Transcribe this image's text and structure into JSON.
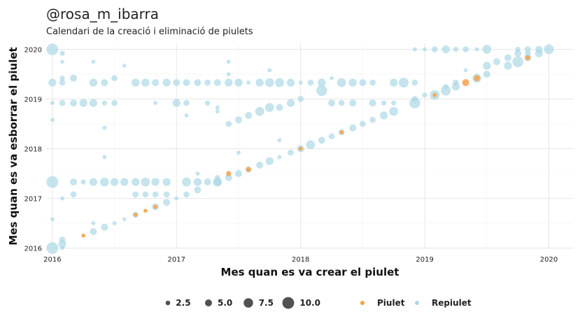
{
  "header": {
    "title": "@rosa_m_ibarra",
    "subtitle": "Calendari de la creació i eliminació de piulets"
  },
  "colors": {
    "piulet": "#F5A14A",
    "repiulet": "#ADD8E6",
    "grid": "#E6E6E6",
    "size_legend": "#333333"
  },
  "chart_data": {
    "type": "scatter",
    "xlabel": "Mes quan es va crear el piulet",
    "ylabel": "Mes quan es va esborrar el piulet",
    "xlim": [
      2015.95,
      2020.2
    ],
    "ylim": [
      2015.98,
      2020.12
    ],
    "x_ticks": [
      2016,
      2017,
      2018,
      2019,
      2020
    ],
    "y_ticks": [
      2016,
      2017,
      2018,
      2019,
      2020
    ],
    "x_tick_labels": [
      "2016",
      "2017",
      "2018",
      "2019",
      "2020"
    ],
    "y_tick_labels": [
      "2016",
      "2017",
      "2018",
      "2019",
      "2020"
    ],
    "grid": true,
    "legend_position": "bottom",
    "size_legend": {
      "values": [
        2.5,
        5.0,
        7.5,
        10.0
      ],
      "labels": [
        "2.5",
        "5.0",
        "7.5",
        "10.0"
      ]
    },
    "color_legend": [
      {
        "name": "Piulet",
        "color": "#F5A14A"
      },
      {
        "name": "Repiulet",
        "color": "#ADD8E6"
      }
    ],
    "series": [
      {
        "name": "Repiulet",
        "points": [
          [
            2016.0,
            2020.0,
            10
          ],
          [
            2016.08,
            2019.42,
            3
          ],
          [
            2016.08,
            2019.92,
            3
          ],
          [
            2016.0,
            2016.0,
            10
          ],
          [
            2016.08,
            2016.08,
            6
          ],
          [
            2016.08,
            2016.17,
            4
          ],
          [
            2016.33,
            2016.33,
            5
          ],
          [
            2016.42,
            2016.42,
            5
          ],
          [
            2016.5,
            2016.5,
            2
          ],
          [
            2016.58,
            2016.58,
            2
          ],
          [
            2016.67,
            2016.67,
            4
          ],
          [
            2016.83,
            2016.83,
            5
          ],
          [
            2016.92,
            2016.92,
            5
          ],
          [
            2017.0,
            2017.0,
            2
          ],
          [
            2017.08,
            2017.08,
            4
          ],
          [
            2017.17,
            2017.17,
            5
          ],
          [
            2017.33,
            2017.33,
            7
          ],
          [
            2017.42,
            2017.42,
            5
          ],
          [
            2017.5,
            2017.5,
            5
          ],
          [
            2017.58,
            2017.58,
            4
          ],
          [
            2017.67,
            2017.67,
            5
          ],
          [
            2017.75,
            2017.75,
            6
          ],
          [
            2017.83,
            2017.83,
            2
          ],
          [
            2017.92,
            2017.92,
            4
          ],
          [
            2018.0,
            2018.0,
            5
          ],
          [
            2018.08,
            2018.08,
            7
          ],
          [
            2018.17,
            2018.17,
            5
          ],
          [
            2018.25,
            2018.25,
            4
          ],
          [
            2018.33,
            2018.33,
            4
          ],
          [
            2018.42,
            2018.42,
            5
          ],
          [
            2018.5,
            2018.5,
            4
          ],
          [
            2018.58,
            2018.58,
            4
          ],
          [
            2018.67,
            2018.67,
            6
          ],
          [
            2018.75,
            2018.75,
            7
          ],
          [
            2018.92,
            2018.92,
            9
          ],
          [
            2019.08,
            2019.08,
            8
          ],
          [
            2019.17,
            2019.17,
            8
          ],
          [
            2019.25,
            2019.25,
            6
          ],
          [
            2019.42,
            2019.42,
            7
          ],
          [
            2019.5,
            2019.5,
            5
          ],
          [
            2019.67,
            2019.67,
            6
          ],
          [
            2019.75,
            2019.75,
            9
          ],
          [
            2019.83,
            2019.83,
            5
          ],
          [
            2019.92,
            2019.92,
            6
          ],
          [
            2020.0,
            2020.0,
            8
          ],
          [
            2016.0,
            2019.33,
            6
          ],
          [
            2016.08,
            2019.33,
            4
          ],
          [
            2016.17,
            2019.42,
            5
          ],
          [
            2016.33,
            2019.33,
            6
          ],
          [
            2016.42,
            2019.33,
            5
          ],
          [
            2016.5,
            2019.42,
            4
          ],
          [
            2016.67,
            2019.33,
            6
          ],
          [
            2016.75,
            2019.33,
            6
          ],
          [
            2016.83,
            2019.33,
            5
          ],
          [
            2016.92,
            2019.33,
            6
          ],
          [
            2017.0,
            2019.33,
            5
          ],
          [
            2017.08,
            2019.33,
            5
          ],
          [
            2017.17,
            2019.33,
            5
          ],
          [
            2017.25,
            2019.33,
            4
          ],
          [
            2017.33,
            2019.33,
            5
          ],
          [
            2017.42,
            2019.33,
            6
          ],
          [
            2017.5,
            2019.33,
            6
          ],
          [
            2017.58,
            2019.33,
            2
          ],
          [
            2017.67,
            2019.33,
            6
          ],
          [
            2017.75,
            2019.33,
            7
          ],
          [
            2017.83,
            2019.33,
            7
          ],
          [
            2017.92,
            2019.33,
            6
          ],
          [
            2018.0,
            2019.33,
            2
          ],
          [
            2018.08,
            2019.33,
            4
          ],
          [
            2018.17,
            2019.33,
            6
          ],
          [
            2018.25,
            2019.42,
            2
          ],
          [
            2018.33,
            2019.33,
            7
          ],
          [
            2018.42,
            2019.33,
            6
          ],
          [
            2018.5,
            2019.33,
            5
          ],
          [
            2018.58,
            2019.33,
            4
          ],
          [
            2018.75,
            2019.33,
            6
          ],
          [
            2018.83,
            2019.33,
            8
          ],
          [
            2018.92,
            2019.33,
            4
          ],
          [
            2016.0,
            2018.92,
            2
          ],
          [
            2016.08,
            2018.92,
            4
          ],
          [
            2016.17,
            2018.92,
            5
          ],
          [
            2016.25,
            2018.92,
            6
          ],
          [
            2016.33,
            2018.92,
            6
          ],
          [
            2016.42,
            2018.92,
            3
          ],
          [
            2016.5,
            2018.92,
            4
          ],
          [
            2016.83,
            2018.92,
            2
          ],
          [
            2017.0,
            2018.92,
            6
          ],
          [
            2017.08,
            2018.92,
            4
          ],
          [
            2017.25,
            2018.92,
            3
          ],
          [
            2017.33,
            2018.83,
            2
          ],
          [
            2017.42,
            2018.5,
            4
          ],
          [
            2017.5,
            2018.58,
            5
          ],
          [
            2017.58,
            2018.67,
            5
          ],
          [
            2017.67,
            2018.75,
            7
          ],
          [
            2017.75,
            2018.83,
            7
          ],
          [
            2017.83,
            2018.83,
            5
          ],
          [
            2017.92,
            2018.92,
            6
          ],
          [
            2018.0,
            2019.0,
            4
          ],
          [
            2018.17,
            2019.17,
            9
          ],
          [
            2018.25,
            2018.92,
            5
          ],
          [
            2018.33,
            2018.92,
            4
          ],
          [
            2018.42,
            2018.92,
            5
          ],
          [
            2018.58,
            2018.92,
            5
          ],
          [
            2018.67,
            2018.92,
            3
          ],
          [
            2018.75,
            2018.92,
            3
          ],
          [
            2018.92,
            2019.0,
            4
          ],
          [
            2019.0,
            2019.08,
            3
          ],
          [
            2016.0,
            2017.33,
            10
          ],
          [
            2016.17,
            2017.33,
            5
          ],
          [
            2016.25,
            2017.33,
            3
          ],
          [
            2016.33,
            2017.33,
            6
          ],
          [
            2016.42,
            2017.33,
            7
          ],
          [
            2016.5,
            2017.33,
            6
          ],
          [
            2016.58,
            2017.33,
            6
          ],
          [
            2016.67,
            2017.33,
            6
          ],
          [
            2016.75,
            2017.33,
            7
          ],
          [
            2016.83,
            2017.33,
            6
          ],
          [
            2016.92,
            2017.33,
            6
          ],
          [
            2017.08,
            2017.33,
            7
          ],
          [
            2017.17,
            2017.33,
            6
          ],
          [
            2017.25,
            2017.33,
            5
          ],
          [
            2017.33,
            2017.33,
            6
          ],
          [
            2016.67,
            2017.08,
            4
          ],
          [
            2016.75,
            2017.08,
            4
          ],
          [
            2016.83,
            2017.08,
            4
          ],
          [
            2016.92,
            2017.08,
            4
          ],
          [
            2016.17,
            2017.08,
            4
          ],
          [
            2016.08,
            2017.0,
            2
          ],
          [
            2017.17,
            2017.5,
            2
          ],
          [
            2017.33,
            2017.42,
            3
          ],
          [
            2016.0,
            2016.58,
            2
          ],
          [
            2016.08,
            2016.0,
            2
          ],
          [
            2016.33,
            2016.5,
            2
          ],
          [
            2016.42,
            2017.83,
            2
          ],
          [
            2016.42,
            2018.42,
            2
          ],
          [
            2016.0,
            2018.58,
            2
          ],
          [
            2016.08,
            2019.75,
            2
          ],
          [
            2016.33,
            2019.75,
            2
          ],
          [
            2016.58,
            2019.67,
            2
          ],
          [
            2017.08,
            2018.67,
            2
          ],
          [
            2017.33,
            2018.75,
            2
          ],
          [
            2017.42,
            2019.5,
            2
          ],
          [
            2017.42,
            2019.75,
            2
          ],
          [
            2017.75,
            2019.58,
            2
          ],
          [
            2017.5,
            2017.92,
            2
          ],
          [
            2017.83,
            2018.17,
            2
          ],
          [
            2018.92,
            2020.0,
            2
          ],
          [
            2019.0,
            2020.0,
            2
          ],
          [
            2019.08,
            2020.0,
            4
          ],
          [
            2019.17,
            2020.0,
            6
          ],
          [
            2019.25,
            2020.0,
            3
          ],
          [
            2019.33,
            2020.0,
            4
          ],
          [
            2019.42,
            2020.0,
            2
          ],
          [
            2019.5,
            2020.0,
            7
          ],
          [
            2019.75,
            2020.0,
            3
          ],
          [
            2019.83,
            2020.0,
            4
          ],
          [
            2019.92,
            2020.0,
            5
          ],
          [
            2019.5,
            2019.67,
            6
          ],
          [
            2019.58,
            2019.75,
            5
          ],
          [
            2019.67,
            2019.83,
            5
          ],
          [
            2019.75,
            2019.92,
            5
          ],
          [
            2019.83,
            2019.92,
            4
          ],
          [
            2019.17,
            2019.25,
            3
          ],
          [
            2019.25,
            2019.33,
            4
          ],
          [
            2019.33,
            2019.58,
            2
          ]
        ]
      },
      {
        "name": "Piulet",
        "points": [
          [
            2016.75,
            2016.75,
            2
          ],
          [
            2016.25,
            2016.25,
            2
          ],
          [
            2016.67,
            2016.67,
            2
          ],
          [
            2016.83,
            2016.83,
            2
          ],
          [
            2017.42,
            2017.5,
            3
          ],
          [
            2017.58,
            2017.58,
            3
          ],
          [
            2018.0,
            2018.0,
            2
          ],
          [
            2018.33,
            2018.33,
            2
          ],
          [
            2019.33,
            2019.33,
            5
          ],
          [
            2019.42,
            2019.42,
            4
          ],
          [
            2019.08,
            2019.08,
            2
          ],
          [
            2019.83,
            2019.83,
            3
          ]
        ]
      }
    ]
  }
}
